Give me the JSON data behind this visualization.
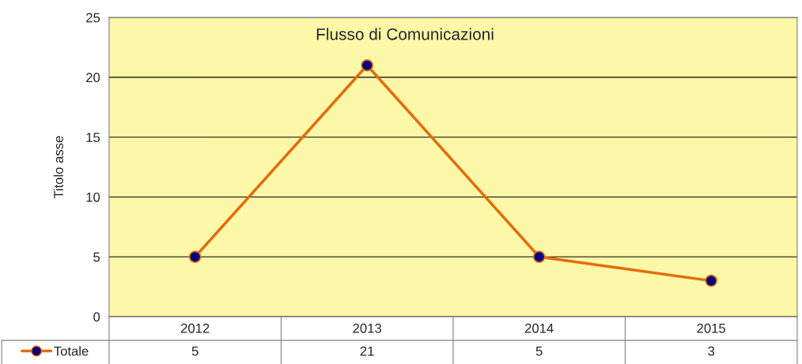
{
  "chart_data": {
    "type": "line",
    "title": "Flusso di Comunicazioni",
    "ylabel": "Titolo asse",
    "categories": [
      "2012",
      "2013",
      "2014",
      "2015"
    ],
    "series": [
      {
        "name": "Totale",
        "color": "#e46c0a",
        "values": [
          5,
          21,
          5,
          3
        ]
      }
    ],
    "ylim": [
      0,
      25
    ],
    "yticks": [
      0,
      5,
      10,
      15,
      20,
      25
    ],
    "grid": "y",
    "marker": "circle",
    "line_style": "solid",
    "data_labels": true,
    "legend": "bottom"
  }
}
